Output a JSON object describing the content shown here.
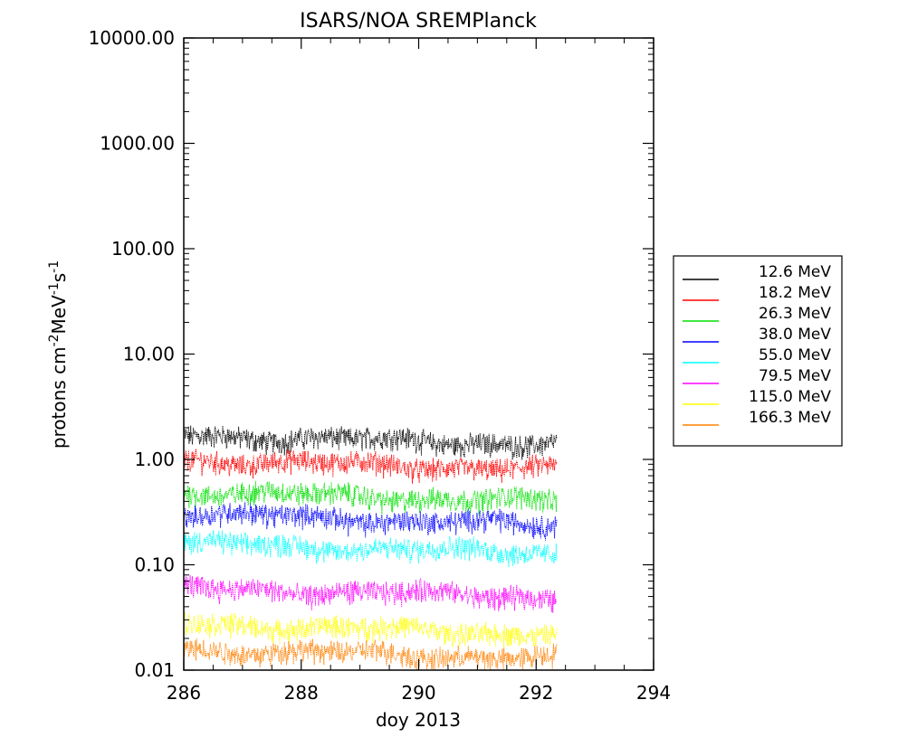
{
  "chart_data": {
    "type": "scatter",
    "title": "ISARS/NOA   SREMPlanck",
    "xlabel": "doy 2013",
    "ylabel": {
      "base": "protons cm",
      "sup1": "-2",
      "mid": "MeV",
      "sup2": "-1",
      "end": "s",
      "sup3": "-1"
    },
    "xlim": [
      286,
      294
    ],
    "ylim": [
      0.01,
      10000
    ],
    "yscale": "log",
    "x_ticks": [
      "286",
      "288",
      "290",
      "292",
      "294"
    ],
    "y_ticks": [
      "0.01",
      "0.10",
      "1.00",
      "10.00",
      "100.00",
      "1000.00",
      "10000.00"
    ],
    "x_start": 286.0,
    "x_end": 292.35,
    "legend_position": "right",
    "series": [
      {
        "name": "12.6 MeV",
        "color": "#000000",
        "start": 1.7,
        "end": 1.4
      },
      {
        "name": "18.2 MeV",
        "color": "#ff0000",
        "start": 1.0,
        "end": 0.8
      },
      {
        "name": "26.3 MeV",
        "color": "#00e000",
        "start": 0.5,
        "end": 0.4
      },
      {
        "name": "38.0 MeV",
        "color": "#0000ff",
        "start": 0.31,
        "end": 0.24
      },
      {
        "name": "55.0 MeV",
        "color": "#00ffff",
        "start": 0.16,
        "end": 0.13
      },
      {
        "name": "79.5 MeV",
        "color": "#ff00ff",
        "start": 0.06,
        "end": 0.05
      },
      {
        "name": "115.0 MeV",
        "color": "#ffff00",
        "start": 0.028,
        "end": 0.022
      },
      {
        "name": "166.3 MeV",
        "color": "#ff8000",
        "start": 0.016,
        "end": 0.013
      }
    ]
  }
}
